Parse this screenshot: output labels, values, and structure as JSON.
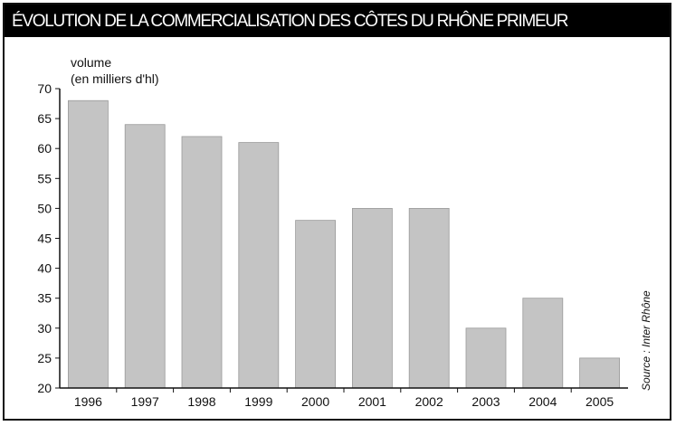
{
  "title": "ÉVOLUTION DE LA COMMERCIALISATION DES CÔTES DU RHÔNE PRIMEUR",
  "source": "Source : Inter Rhône",
  "colors": {
    "bar": "#c4c4c4",
    "bar_edge": "#9a9a9a",
    "axis": "#111111",
    "title_bg": "#000000",
    "title_fg": "#ffffff"
  },
  "chart_data": {
    "type": "bar",
    "title": "ÉVOLUTION DE LA COMMERCIALISATION DES CÔTES DU RHÔNE PRIMEUR",
    "ylabel_line1": "volume",
    "ylabel_line2": "(en milliers d'hl)",
    "xlabel": "",
    "categories": [
      "1996",
      "1997",
      "1998",
      "1999",
      "2000",
      "2001",
      "2002",
      "2003",
      "2004",
      "2005"
    ],
    "values": [
      68,
      64,
      62,
      61,
      48,
      50,
      50,
      30,
      35,
      25
    ],
    "ylim": [
      20,
      70
    ],
    "yticks": [
      20,
      25,
      30,
      35,
      40,
      45,
      50,
      55,
      60,
      65,
      70
    ],
    "grid": false,
    "legend": "none"
  }
}
